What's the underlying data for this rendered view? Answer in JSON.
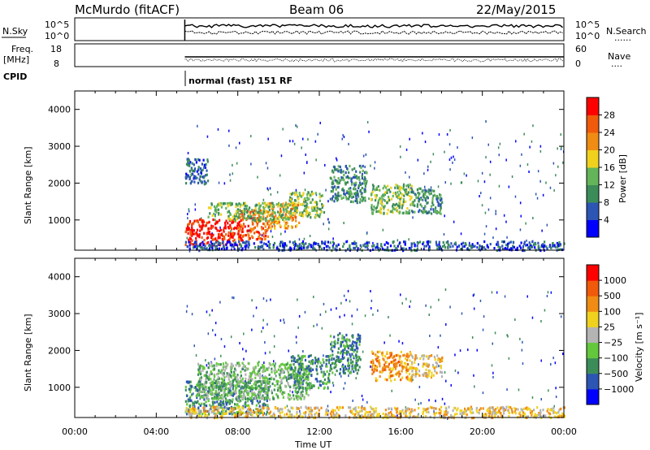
{
  "header": {
    "station": "McMurdo (fitACF)",
    "beam": "Beam 06",
    "date": "22/May/2015"
  },
  "noise_panel": {
    "left_label": "N.Sky",
    "right_label": "N.Search",
    "right_key": "......",
    "left_ticks": [
      "10^5",
      "10^0"
    ],
    "right_ticks": [
      "10^5",
      "10^0"
    ]
  },
  "freq_panel": {
    "left_label_1": "Freq.",
    "left_label_2": "[MHz]",
    "left_ticks": [
      "18",
      "8"
    ],
    "right_label": "Nave",
    "right_key": "....",
    "right_ticks": [
      "60",
      "0"
    ]
  },
  "cpid": {
    "label": "CPID",
    "text": "normal (fast) 151 RF"
  },
  "x_axis": {
    "label": "Time UT",
    "ticks": [
      "00:00",
      "04:00",
      "08:00",
      "12:00",
      "16:00",
      "20:00",
      "00:00"
    ]
  },
  "chart_data": [
    {
      "type": "heatmap",
      "panel": "power",
      "ylabel": "Slant Range [km]",
      "yticks": [
        "1000",
        "2000",
        "3000",
        "4000"
      ],
      "ylim": [
        180,
        4500
      ],
      "xlim_hours": [
        0,
        24
      ],
      "data_start_hours": 5.4,
      "colorbar": {
        "label": "Power [dB]",
        "ticks": [
          "4",
          "8",
          "12",
          "16",
          "20",
          "24",
          "28"
        ],
        "colors": [
          "#0000ff",
          "#2c55b4",
          "#3c8c5a",
          "#64b45a",
          "#f0d21e",
          "#f08c14",
          "#f05a0a",
          "#ff0000"
        ]
      },
      "regions": [
        {
          "t0": 5.4,
          "t1": 8.2,
          "r0": 350,
          "r1": 1050,
          "level": 7
        },
        {
          "t0": 8.0,
          "t1": 9.5,
          "r0": 500,
          "r1": 1300,
          "level": 6
        },
        {
          "t0": 9.5,
          "t1": 11.0,
          "r0": 800,
          "r1": 1500,
          "level": 5
        },
        {
          "t0": 6.5,
          "t1": 10.5,
          "r0": 1000,
          "r1": 1500,
          "level": 3
        },
        {
          "t0": 10.5,
          "t1": 12.2,
          "r0": 1100,
          "r1": 1800,
          "level": 3
        },
        {
          "t0": 12.5,
          "t1": 14.3,
          "r0": 1500,
          "r1": 2500,
          "level": 2
        },
        {
          "t0": 14.5,
          "t1": 16.5,
          "r0": 1200,
          "r1": 2000,
          "level": 3
        },
        {
          "t0": 16.5,
          "t1": 18.0,
          "r0": 1200,
          "r1": 1900,
          "level": 2
        },
        {
          "t0": 5.4,
          "t1": 6.5,
          "r0": 2000,
          "r1": 2700,
          "level": 1
        },
        {
          "t0": 5.4,
          "t1": 24,
          "r0": 200,
          "r1": 450,
          "level": 1
        }
      ]
    },
    {
      "type": "heatmap",
      "panel": "velocity",
      "ylabel": "Slant Range [km]",
      "yticks": [
        "1000",
        "2000",
        "3000",
        "4000"
      ],
      "ylim": [
        180,
        4500
      ],
      "xlim_hours": [
        0,
        24
      ],
      "data_start_hours": 5.4,
      "colorbar": {
        "label": "Velocity [m s⁻¹]",
        "ticks": [
          "1000",
          "500",
          "100",
          "25",
          "−25",
          "−100",
          "−500",
          "−1000"
        ],
        "colors": [
          "#0000ff",
          "#2c55b4",
          "#3c8c5a",
          "#64c83c",
          "#b4b4b4",
          "#f0d21e",
          "#f08c14",
          "#f05a0a",
          "#ff0000"
        ]
      },
      "regions": [
        {
          "t0": 5.4,
          "t1": 9.5,
          "r0": 300,
          "r1": 1200,
          "level": 2
        },
        {
          "t0": 6.0,
          "t1": 11.5,
          "r0": 700,
          "r1": 1700,
          "level": 3
        },
        {
          "t0": 10.5,
          "t1": 12.5,
          "r0": 1000,
          "r1": 1900,
          "level": 2
        },
        {
          "t0": 12.5,
          "t1": 14.0,
          "r0": 1400,
          "r1": 2500,
          "level": 2
        },
        {
          "t0": 14.5,
          "t1": 16.5,
          "r0": 1200,
          "r1": 2000,
          "level": 6
        },
        {
          "t0": 16.5,
          "t1": 18.0,
          "r0": 1300,
          "r1": 1900,
          "level": 5
        },
        {
          "t0": 5.4,
          "t1": 24,
          "r0": 200,
          "r1": 500,
          "level": 5
        }
      ]
    }
  ]
}
